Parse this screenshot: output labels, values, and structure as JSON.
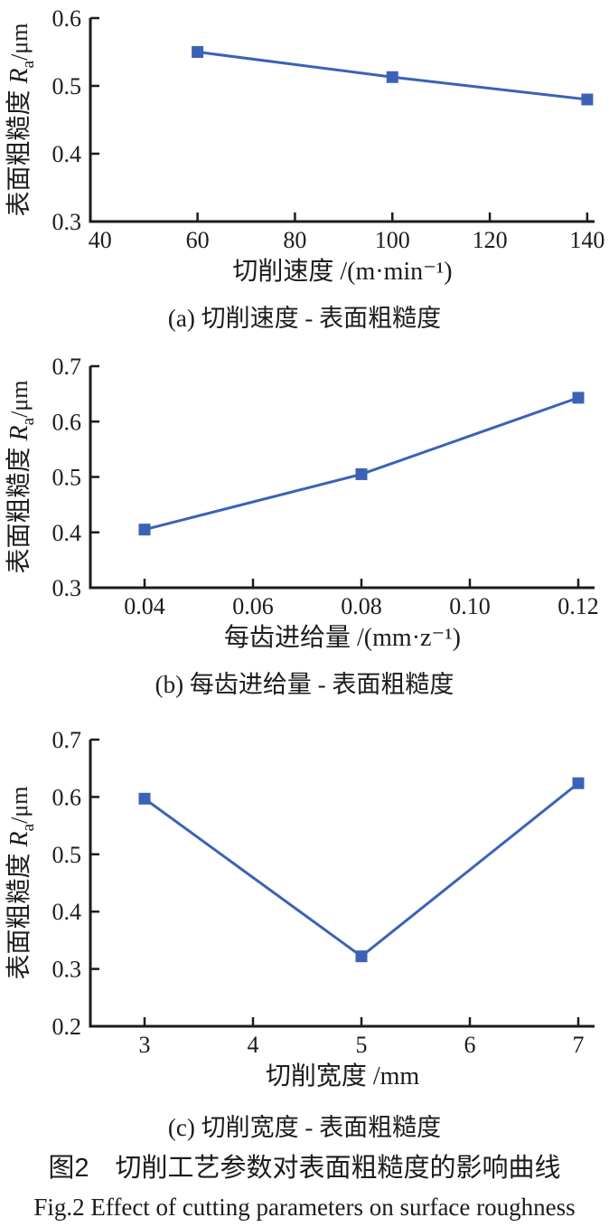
{
  "style": {
    "series_color": "#3B62B7",
    "axis_color": "#1c1c1c",
    "text_color": "#1c1c1c",
    "background": "#ffffff"
  },
  "figure": {
    "caption_zh": "图2　切削工艺参数对表面粗糙度的影响曲线",
    "caption_en": "Fig.2  Effect of cutting parameters on surface roughness"
  },
  "chart_data": [
    {
      "id": "a",
      "type": "line",
      "subtitle": "(a) 切削速度 - 表面粗糙度",
      "xlabel": "切削速度 /(m·min⁻¹)",
      "ylabel": "表面粗糙度 Ra/μm",
      "ylabel_parts": {
        "prefix": "表面粗糙度 ",
        "symbol": "R",
        "sub": "a",
        "unit": "/μm"
      },
      "x": [
        60,
        100,
        140
      ],
      "y": [
        0.55,
        0.513,
        0.48
      ],
      "xticks": [
        40,
        60,
        80,
        100,
        120,
        140
      ],
      "xtick_labels": [
        "40",
        "60",
        "80",
        "100",
        "120",
        "140"
      ],
      "yticks": [
        0.3,
        0.4,
        0.5,
        0.6
      ],
      "ytick_labels": [
        "0.3",
        "0.4",
        "0.5",
        "0.6"
      ],
      "xlim": [
        38,
        141.5
      ],
      "ylim": [
        0.3,
        0.6
      ],
      "marker": "square",
      "grid": false,
      "legend": null
    },
    {
      "id": "b",
      "type": "line",
      "subtitle": "(b) 每齿进给量 - 表面粗糙度",
      "xlabel": "每齿进给量 /(mm·z⁻¹)",
      "ylabel": "表面粗糙度 Ra/μm",
      "ylabel_parts": {
        "prefix": "表面粗糙度 ",
        "symbol": "R",
        "sub": "a",
        "unit": "/μm"
      },
      "x": [
        0.04,
        0.08,
        0.12
      ],
      "y": [
        0.405,
        0.505,
        0.643
      ],
      "xticks": [
        0.04,
        0.06,
        0.08,
        0.1,
        0.12
      ],
      "xtick_labels": [
        "0.04",
        "0.06",
        "0.08",
        "0.10",
        "0.12"
      ],
      "yticks": [
        0.3,
        0.4,
        0.5,
        0.6,
        0.7
      ],
      "ytick_labels": [
        "0.3",
        "0.4",
        "0.5",
        "0.6",
        "0.7"
      ],
      "xlim": [
        0.03,
        0.123
      ],
      "ylim": [
        0.3,
        0.7
      ],
      "marker": "square",
      "grid": false,
      "legend": null
    },
    {
      "id": "c",
      "type": "line",
      "subtitle": "(c) 切削宽度 - 表面粗糙度",
      "xlabel": "切削宽度 /mm",
      "ylabel": "表面粗糙度 Ra/μm",
      "ylabel_parts": {
        "prefix": "表面粗糙度 ",
        "symbol": "R",
        "sub": "a",
        "unit": "/μm"
      },
      "x": [
        3,
        5,
        7
      ],
      "y": [
        0.597,
        0.322,
        0.624
      ],
      "xticks": [
        3,
        4,
        5,
        6,
        7
      ],
      "xtick_labels": [
        "3",
        "4",
        "5",
        "6",
        "7"
      ],
      "yticks": [
        0.2,
        0.3,
        0.4,
        0.5,
        0.6,
        0.7
      ],
      "ytick_labels": [
        "0.2",
        "0.3",
        "0.4",
        "0.5",
        "0.6",
        "0.7"
      ],
      "xlim": [
        2.5,
        7.15
      ],
      "ylim": [
        0.2,
        0.7
      ],
      "marker": "square",
      "grid": false,
      "legend": null
    }
  ]
}
